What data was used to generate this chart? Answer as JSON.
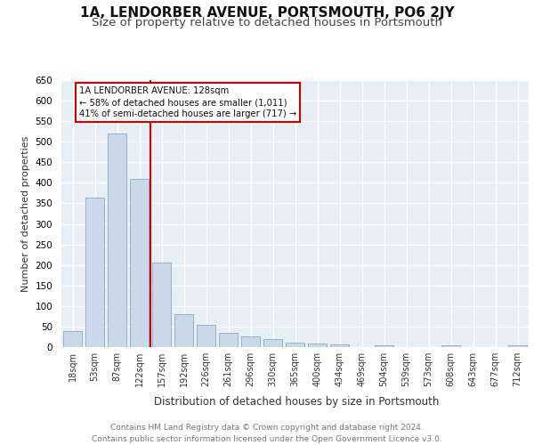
{
  "title": "1A, LENDORBER AVENUE, PORTSMOUTH, PO6 2JY",
  "subtitle": "Size of property relative to detached houses in Portsmouth",
  "xlabel": "Distribution of detached houses by size in Portsmouth",
  "ylabel": "Number of detached properties",
  "bar_labels": [
    "18sqm",
    "53sqm",
    "87sqm",
    "122sqm",
    "157sqm",
    "192sqm",
    "226sqm",
    "261sqm",
    "296sqm",
    "330sqm",
    "365sqm",
    "400sqm",
    "434sqm",
    "469sqm",
    "504sqm",
    "539sqm",
    "573sqm",
    "608sqm",
    "643sqm",
    "677sqm",
    "712sqm"
  ],
  "bar_values": [
    40,
    365,
    520,
    410,
    205,
    80,
    55,
    35,
    25,
    20,
    10,
    8,
    6,
    0,
    5,
    0,
    0,
    4,
    0,
    0,
    5
  ],
  "bar_color": "#c9d9ea",
  "bar_edge_color": "#8aaac8",
  "vline_color": "#cc0000",
  "annotation_text": "1A LENDORBER AVENUE: 128sqm\n← 58% of detached houses are smaller (1,011)\n41% of semi-detached houses are larger (717) →",
  "annotation_box_color": "#cc0000",
  "ylim": [
    0,
    650
  ],
  "yticks": [
    0,
    50,
    100,
    150,
    200,
    250,
    300,
    350,
    400,
    450,
    500,
    550,
    600,
    650
  ],
  "background_color": "#e8eef5",
  "footer_text": "Contains HM Land Registry data © Crown copyright and database right 2024.\nContains public sector information licensed under the Open Government Licence v3.0.",
  "title_fontsize": 11,
  "subtitle_fontsize": 9.5
}
